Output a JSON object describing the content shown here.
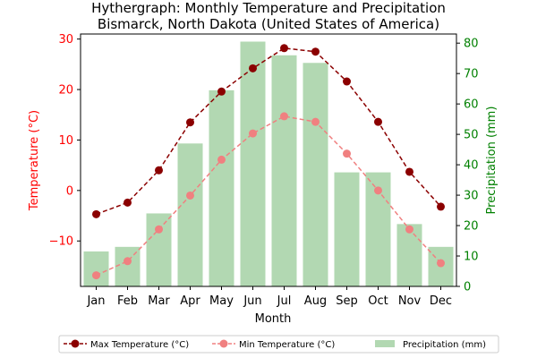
{
  "chart_data": {
    "type": "bar",
    "title_line1": "Hythergraph: Monthly Temperature and Precipitation",
    "title_line2": "Bismarck, North Dakota (United States of America)",
    "xlabel": "Month",
    "ylabel_left": "Temperature (°C)",
    "ylabel_right": "Precipitation (mm)",
    "categories": [
      "Jan",
      "Feb",
      "Mar",
      "Apr",
      "May",
      "Jun",
      "Jul",
      "Aug",
      "Sep",
      "Oct",
      "Nov",
      "Dec"
    ],
    "temperature_ylim": [
      -19,
      31
    ],
    "temperature_ticks": [
      -10,
      0,
      10,
      20,
      30
    ],
    "temperature_tick_labels": [
      "−10",
      "0",
      "10",
      "20",
      "30"
    ],
    "precipitation_ylim": [
      0,
      83
    ],
    "precipitation_ticks": [
      0,
      10,
      20,
      30,
      40,
      50,
      60,
      70,
      80
    ],
    "precipitation_tick_labels": [
      "0",
      "10",
      "20",
      "30",
      "40",
      "50",
      "60",
      "70",
      "80"
    ],
    "series": [
      {
        "name": "Max Temperature (°C)",
        "kind": "line",
        "axis": "left",
        "color": "#8b0000",
        "values": [
          -4.7,
          -2.4,
          4.0,
          13.5,
          19.6,
          24.2,
          28.2,
          27.5,
          21.6,
          13.6,
          3.7,
          -3.2
        ]
      },
      {
        "name": "Min Temperature (°C)",
        "kind": "line",
        "axis": "left",
        "color": "#f08080",
        "values": [
          -16.8,
          -14.0,
          -7.7,
          -1.0,
          6.1,
          11.3,
          14.7,
          13.6,
          7.3,
          0.0,
          -7.7,
          -14.4
        ]
      },
      {
        "name": "Precipitation (mm)",
        "kind": "bar",
        "axis": "right",
        "color": "#b2d8b2",
        "values": [
          11.5,
          13.0,
          24.0,
          47.0,
          64.5,
          80.5,
          76.0,
          73.5,
          37.5,
          37.5,
          20.5,
          13.0
        ]
      }
    ],
    "colors": {
      "left_axis": "#ff0000",
      "right_axis": "#008000"
    },
    "grid": false,
    "legend_placement": "bottom-center"
  }
}
